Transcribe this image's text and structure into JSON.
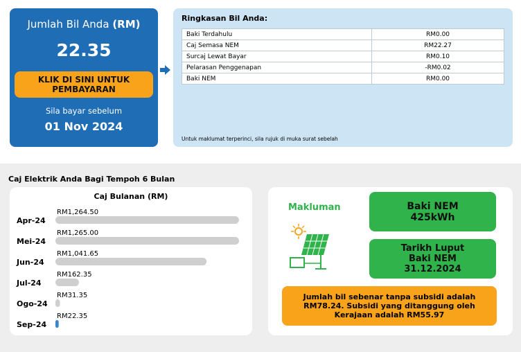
{
  "summary": {
    "title": "Jumlah Bil Anda",
    "title_unit": "(RM)",
    "amount": "22.35",
    "button": "KLIK DI SINI UNTUK PEMBAYARAN",
    "due_label": "Sila bayar sebelum",
    "due_date": "01 Nov 2024"
  },
  "table": {
    "title": "Ringkasan Bil Anda:",
    "rows": [
      [
        "Baki Terdahulu",
        "RM0.00"
      ],
      [
        "Caj Semasa NEM",
        "RM22.27"
      ],
      [
        "Surcaj Lewat Bayar",
        "RM0.10"
      ],
      [
        "Pelarasan Penggenapan",
        "-RM0.02"
      ],
      [
        "Baki NEM",
        "RM0.00"
      ]
    ],
    "note": "Untuk maklumat terperinci, sila rujuk di muka surat sebelah"
  },
  "section_title": "Caj Elektrik Anda Bagi Tempoh 6 Bulan",
  "chart_data": {
    "type": "bar",
    "orientation": "horizontal",
    "title": "Caj Bulanan (RM)",
    "categories": [
      "Apr-24",
      "Mei-24",
      "Jun-24",
      "Jul-24",
      "Ogo-24",
      "Sep-24"
    ],
    "values": [
      1264.5,
      1265,
      1041.65,
      162.35,
      31.35,
      22.35
    ],
    "value_labels": [
      "RM1,264.50",
      "RM1,265.00",
      "RM1,041.65",
      "RM162.35",
      "RM31.35",
      "RM22.35"
    ],
    "colors": [
      "#cfcfcf",
      "#cfcfcf",
      "#cfcfcf",
      "#cfcfcf",
      "#cfcfcf",
      "#3a86c8"
    ]
  },
  "info": {
    "title": "Makluman",
    "nem_label": "Baki NEM",
    "nem_value": "425kWh",
    "expiry_label": "Tarikh Luput Baki NEM",
    "expiry_date": "31.12.2024",
    "subsidy_note": "Jumlah bil sebenar tanpa subsidi adalah RM78.24. Subsidi yang ditanggung oleh Kerajaan adalah RM55.97"
  }
}
